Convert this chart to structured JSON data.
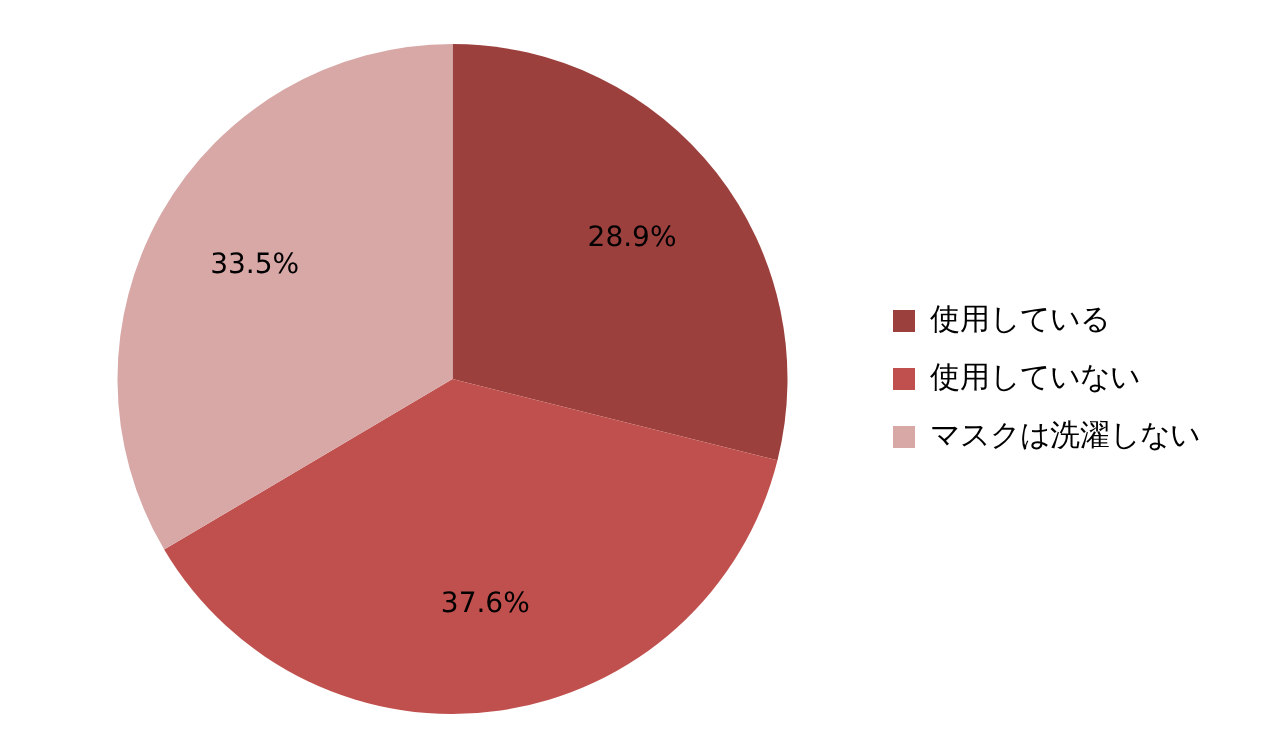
{
  "chart_data": {
    "type": "pie",
    "categories": [
      "使用している",
      "使用していない",
      "マスクは洗濯しない"
    ],
    "values": [
      28.9,
      37.6,
      33.5
    ],
    "value_labels": [
      "28.9%",
      "37.6%",
      "33.5%"
    ],
    "colors": [
      "#9c403e",
      "#c0504d",
      "#d8a8a7"
    ],
    "legend": "right"
  }
}
